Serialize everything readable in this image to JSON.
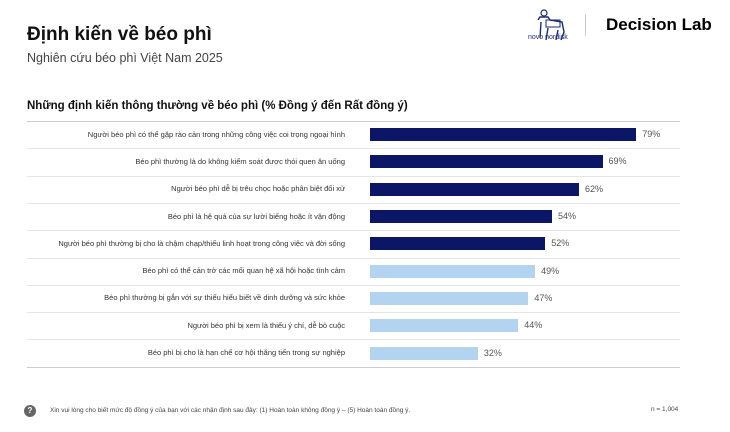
{
  "header": {
    "title": "Định kiến về béo phì",
    "subtitle": "Nghiên cứu béo phì Việt Nam 2025"
  },
  "logos": {
    "novo": "novo nordisk",
    "decision_lab": "Decision Lab"
  },
  "chart_data": {
    "type": "bar",
    "orientation": "horizontal",
    "title": "Những định kiến thông thường về béo phì (% Đồng ý đến Rất đồng ý)",
    "categories": [
      "Người béo phì có thể gặp rào cản trong những công việc coi trọng ngoại hình",
      "Béo phì thường là do không kiểm soát được thói quen ăn uống",
      "Người béo phì dễ bị trêu chọc hoặc phân biệt đối xử",
      "Béo phì là hệ quả của sự lười biếng hoặc ít vận động",
      "Người béo phì thường bị cho là chậm chạp/thiếu linh hoạt trong công việc và đời sống",
      "Béo phì có thể cản trở các mối quan hệ xã hội hoặc tình cảm",
      "Béo phì thường bị gắn với sự thiếu hiểu biết về dinh dưỡng và sức khỏe",
      "Người béo phì bị xem là thiếu ý chí, dễ bỏ cuộc",
      "Béo phì bị cho là hạn chế cơ hội thăng tiến trong sự nghiệp"
    ],
    "values": [
      79,
      69,
      62,
      54,
      52,
      49,
      47,
      44,
      32
    ],
    "value_labels": [
      "79%",
      "69%",
      "62%",
      "54%",
      "52%",
      "49%",
      "47%",
      "44%",
      "32%"
    ],
    "highlight": [
      true,
      true,
      true,
      true,
      true,
      false,
      false,
      false,
      false
    ],
    "xlim": [
      0,
      100
    ],
    "colors": {
      "highlight": "#0b1666",
      "other": "#b3d4f0"
    }
  },
  "footer": {
    "icon": "?",
    "note": "Xin vui lòng cho biết mức độ đồng ý của bạn với các nhận định sau đây: (1) Hoàn toàn không đồng ý – (5) Hoàn toàn đồng ý.",
    "sample": "n = 1,004"
  }
}
